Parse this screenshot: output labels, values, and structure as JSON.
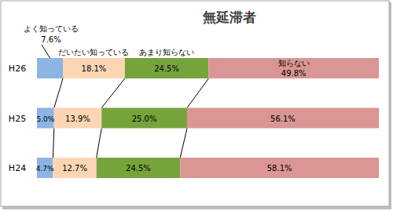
{
  "chart_data": {
    "type": "bar",
    "title": "無延滞者",
    "orientation": "horizontal",
    "stacked": true,
    "data_labels": true,
    "tick_labels": "y",
    "categories": [
      "H26",
      "H25",
      "H24"
    ],
    "xlim": [
      0,
      100
    ],
    "series": [
      {
        "name": "よく知っている",
        "color": "#8db4e2",
        "values": [
          7.6,
          5.0,
          4.7
        ],
        "value_labels": [
          "7.6%",
          "5.0%",
          "4.7%"
        ]
      },
      {
        "name": "だいたい知っている",
        "color": "#fcd5b4",
        "values": [
          18.1,
          13.9,
          12.7
        ],
        "value_labels": [
          "18.1%",
          "13.9%",
          "12.7%"
        ]
      },
      {
        "name": "あまり知らない",
        "color": "#77a33c",
        "values": [
          24.5,
          25.0,
          24.5
        ],
        "value_labels": [
          "24.5%",
          "25.0%",
          "24.5%"
        ]
      },
      {
        "name": "知らない",
        "color": "#da9694",
        "values": [
          49.8,
          56.1,
          58.1
        ],
        "value_labels": [
          "49.8%",
          "56.1%",
          "58.1%"
        ]
      }
    ]
  }
}
